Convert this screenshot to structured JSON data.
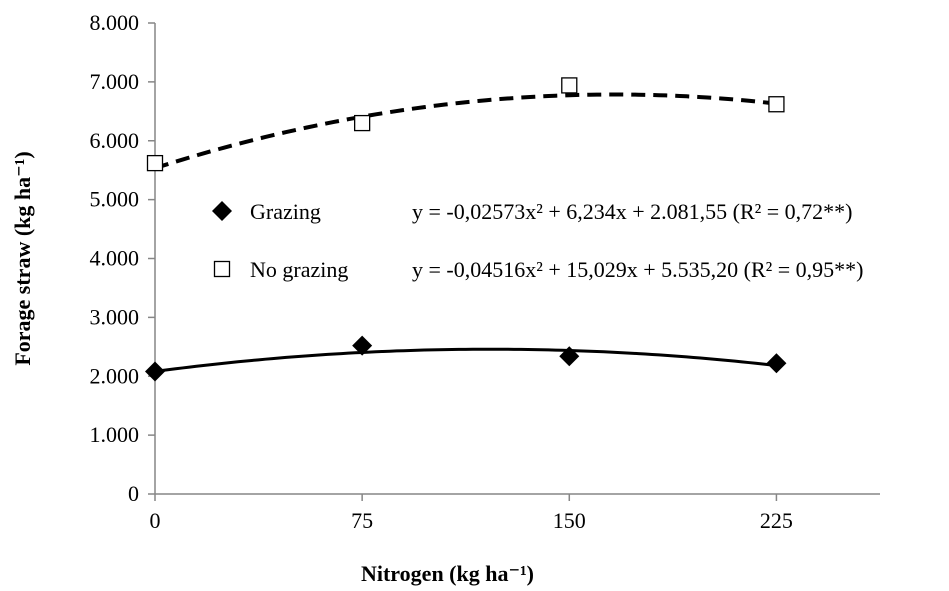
{
  "chart_data": {
    "type": "scatter",
    "xlabel": "Nitrogen (kg ha⁻¹)",
    "ylabel": "Forage straw (kg ha⁻¹)",
    "xlim": [
      0,
      262.5
    ],
    "ylim": [
      0,
      8000
    ],
    "x_ticks": [
      {
        "value": 0,
        "label": "0"
      },
      {
        "value": 75,
        "label": "75"
      },
      {
        "value": 150,
        "label": "150"
      },
      {
        "value": 225,
        "label": "225"
      }
    ],
    "y_ticks": [
      {
        "value": 0,
        "label": "0"
      },
      {
        "value": 1000,
        "label": "1.000"
      },
      {
        "value": 2000,
        "label": "2.000"
      },
      {
        "value": 3000,
        "label": "3.000"
      },
      {
        "value": 4000,
        "label": "4.000"
      },
      {
        "value": 5000,
        "label": "5.000"
      },
      {
        "value": 6000,
        "label": "6.000"
      },
      {
        "value": 7000,
        "label": "7.000"
      },
      {
        "value": 8000,
        "label": "8.000"
      }
    ],
    "grid": false,
    "legend_position": "center",
    "series": [
      {
        "name": "Grazing",
        "marker": "diamond",
        "marker_color": "#000000",
        "line_style": "solid",
        "x": [
          0,
          75,
          150,
          225
        ],
        "y": [
          2080,
          2520,
          2340,
          2220
        ],
        "equation": "y = -0,02573x² + 6,234x + 2.081,55 (R² = 0,72**)",
        "fit": {
          "a": -0.02573,
          "b": 6.234,
          "c": 2081.55
        }
      },
      {
        "name": "No grazing",
        "marker": "square-open",
        "marker_color": "#000000",
        "line_style": "dashed",
        "x": [
          0,
          75,
          150,
          225
        ],
        "y": [
          5620,
          6300,
          6940,
          6620
        ],
        "equation": "y = -0,04516x² + 15,029x + 5.535,20 (R² = 0,95**)",
        "fit": {
          "a": -0.04516,
          "b": 15.029,
          "c": 5535.2
        }
      }
    ]
  }
}
